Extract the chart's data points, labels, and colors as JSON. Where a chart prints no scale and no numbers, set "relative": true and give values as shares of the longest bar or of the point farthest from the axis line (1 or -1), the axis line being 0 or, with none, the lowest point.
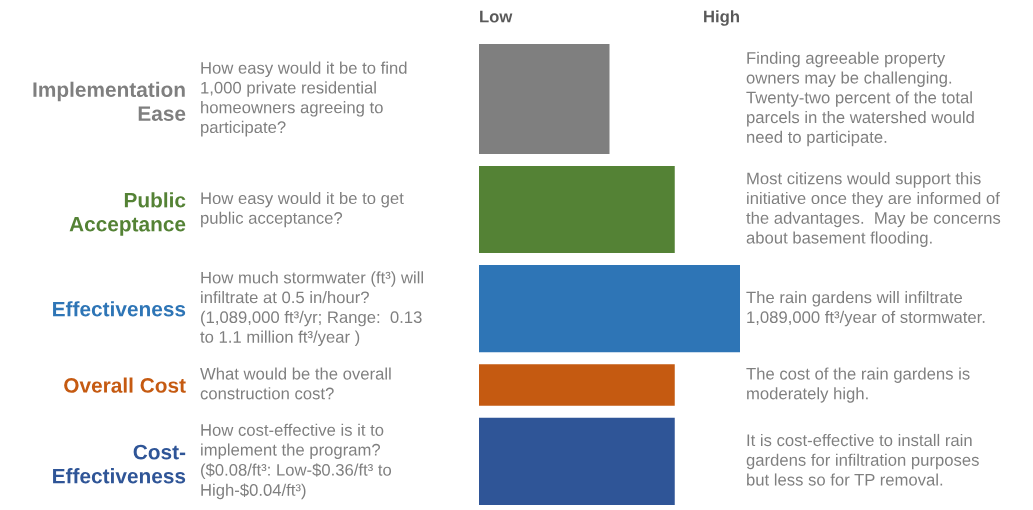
{
  "chart_data": {
    "type": "bar",
    "orientation": "horizontal",
    "relative": true,
    "categories": [
      "Implementation\nEase",
      "Public\nAcceptance",
      "Effectiveness",
      "Overall Cost",
      "Cost-\nEffectiveness"
    ],
    "values": [
      0.5,
      0.75,
      1,
      0.75,
      0.75
    ],
    "colors": [
      "#7f7f7f",
      "#548235",
      "#2e75b6",
      "#c55a11",
      "#2f5597"
    ],
    "annotations": [
      "Low",
      "High",
      "How easy would it be to find\n1,000 private residential\nhomeowners agreeing to\nparticipate?",
      "Finding agreeable property\nowners may be challenging.\nTwenty-two percent of the total\nparcels in the watershed would\nneed to participate.",
      "How easy would it be to get\npublic acceptance?",
      "Most citizens would support this\ninitiative once they are informed of\nthe advantages.  May be concerns\nabout basement flooding.",
      "How much stormwater (ft³) will\ninfiltrate at 0.5 in/hour?\n(1,089,000 ft³/yr; Range:  0.13\nto 1.1 million ft³/year )",
      "The rain gardens will infiltrate\n1,089,000 ft³/year of stormwater.",
      "What would be the overall\nconstruction cost?",
      "The cost of the rain gardens is\nmoderately high.",
      "How cost-effective is it to\nimplement the program?\n($0.08/ft³: Low-$0.36/ft³ to\nHigh-$0.04/ft³)",
      "It is cost-effective to install rain\ngardens for infiltration purposes\nbut less so for TP removal."
    ]
  }
}
